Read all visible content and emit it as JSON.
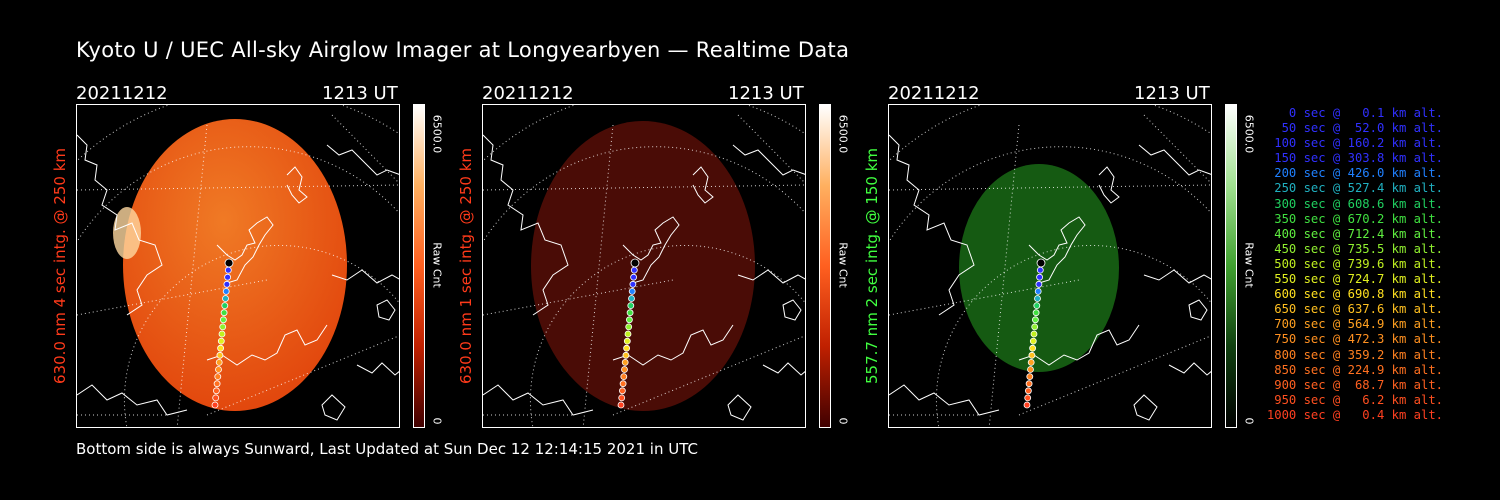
{
  "title": "Kyoto U / UEC All-sky Airglow Imager at Longyearbyen — Realtime Data",
  "footer": "Bottom side is always Sunward, Last Updated at Sun Dec 12 12:14:15 2021 in UTC",
  "panels": [
    {
      "date": "20211212",
      "time": "1213 UT",
      "side_label": "630.0 nm 4 sec intg. @ 250 km",
      "side_color": "#ff3a1a",
      "cbar_max": "6500.0",
      "cbar_unit": "Raw Cnt",
      "cbar_min": "0",
      "image_color": "#e0400a",
      "cbar_colors": [
        "#ffffff",
        "#ffb060",
        "#ff6020",
        "#c02000",
        "#400000"
      ]
    },
    {
      "date": "20211212",
      "time": "1213 UT",
      "side_label": "630.0 nm 1 sec intg. @ 250 km",
      "side_color": "#ff3a1a",
      "cbar_max": "6500.0",
      "cbar_unit": "Raw Cnt",
      "cbar_min": "0",
      "image_color": "#4a0c06",
      "cbar_colors": [
        "#ffffff",
        "#ffb060",
        "#ff6020",
        "#c02000",
        "#400000"
      ]
    },
    {
      "date": "20211212",
      "time": "1213 UT",
      "side_label": "557.7 nm 2 sec intg. @ 150 km",
      "side_color": "#40ff40",
      "cbar_max": "6500.0",
      "cbar_unit": "Raw Cnt",
      "cbar_min": "0",
      "image_color": "#155a12",
      "cbar_colors": [
        "#ffffff",
        "#a0e090",
        "#40a030",
        "#104010",
        "#000000"
      ]
    }
  ],
  "legend": [
    {
      "text": "0 sec @   0.1 km alt.",
      "color": "#3030ff"
    },
    {
      "text": "50 sec @  52.0 km alt.",
      "color": "#3030ff"
    },
    {
      "text": "100 sec @ 160.2 km alt.",
      "color": "#3030ff"
    },
    {
      "text": "150 sec @ 303.8 km alt.",
      "color": "#3030ff"
    },
    {
      "text": "200 sec @ 426.0 km alt.",
      "color": "#2080ff"
    },
    {
      "text": "250 sec @ 527.4 km alt.",
      "color": "#20b0c0"
    },
    {
      "text": "300 sec @ 608.6 km alt.",
      "color": "#20d060"
    },
    {
      "text": "350 sec @ 670.2 km alt.",
      "color": "#40e040"
    },
    {
      "text": "400 sec @ 712.4 km alt.",
      "color": "#60f040"
    },
    {
      "text": "450 sec @ 735.5 km alt.",
      "color": "#90f030"
    },
    {
      "text": "500 sec @ 739.6 km alt.",
      "color": "#c0f020"
    },
    {
      "text": "550 sec @ 724.7 km alt.",
      "color": "#e0f020"
    },
    {
      "text": "600 sec @ 690.8 km alt.",
      "color": "#ffe020"
    },
    {
      "text": "650 sec @ 637.6 km alt.",
      "color": "#ffc020"
    },
    {
      "text": "700 sec @ 564.9 km alt.",
      "color": "#ffa020"
    },
    {
      "text": "750 sec @ 472.3 km alt.",
      "color": "#ff9020"
    },
    {
      "text": "800 sec @ 359.2 km alt.",
      "color": "#ff8020"
    },
    {
      "text": "850 sec @ 224.9 km alt.",
      "color": "#ff7020"
    },
    {
      "text": "900 sec @  68.7 km alt.",
      "color": "#ff6020"
    },
    {
      "text": "950 sec @   6.2 km alt.",
      "color": "#ff5020"
    },
    {
      "text": "1000 sec @   0.4 km alt.",
      "color": "#ff4020"
    }
  ]
}
